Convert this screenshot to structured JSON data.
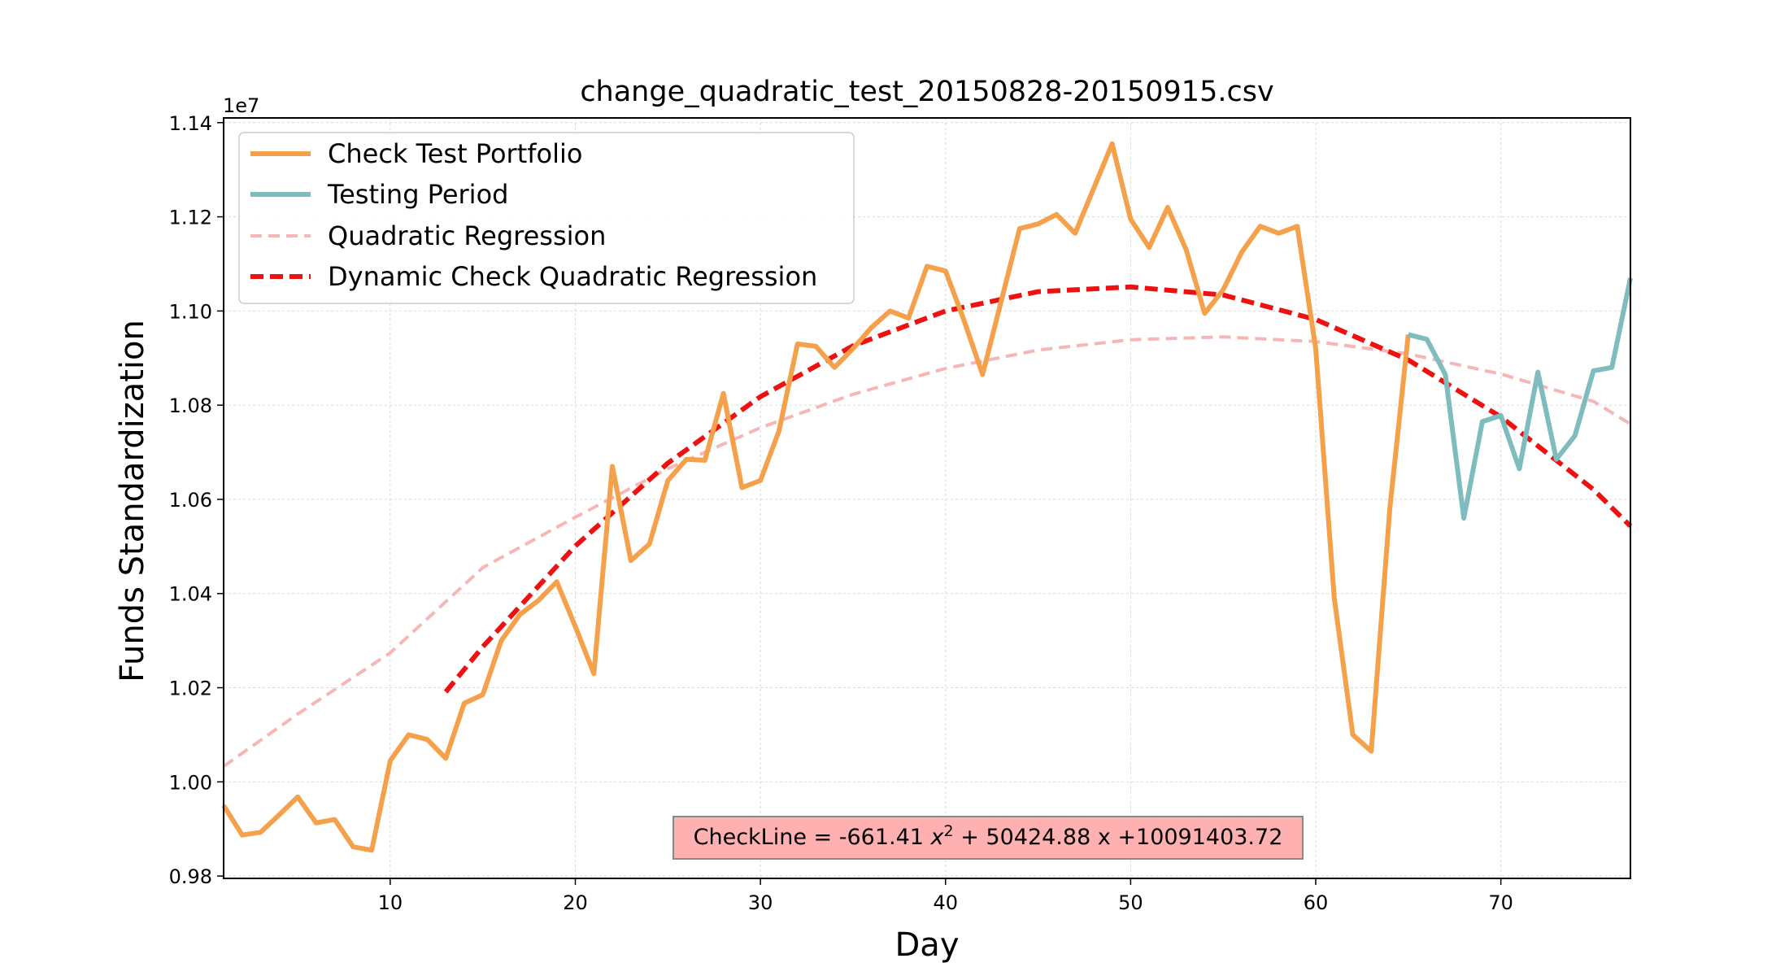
{
  "chart_data": {
    "type": "line",
    "title": "change_quadratic_test_20150828-20150915.csv",
    "xlabel": "Day",
    "ylabel": "Funds Standardization",
    "y_offset_label": "1e7",
    "xlim": [
      1,
      77
    ],
    "ylim": [
      9795000,
      11410000
    ],
    "x_ticks": [
      10,
      20,
      30,
      40,
      50,
      60,
      70
    ],
    "x_tick_labels": [
      "10",
      "20",
      "30",
      "40",
      "50",
      "60",
      "70"
    ],
    "y_ticks": [
      9800000,
      10000000,
      10200000,
      10400000,
      10600000,
      10800000,
      11000000,
      11200000,
      11400000
    ],
    "y_tick_labels": [
      "0.98",
      "1.00",
      "1.02",
      "1.04",
      "1.06",
      "1.08",
      "1.10",
      "1.12",
      "1.14"
    ],
    "grid": true,
    "legend_position": "upper-left",
    "series": [
      {
        "name": "Check Test Portfolio",
        "color": "#f5a04a",
        "style": "solid",
        "x": [
          1,
          2,
          3,
          4,
          5,
          6,
          7,
          8,
          9,
          10,
          11,
          12,
          13,
          14,
          15,
          16,
          17,
          18,
          19,
          20,
          21,
          22,
          23,
          24,
          25,
          26,
          27,
          28,
          29,
          30,
          31,
          32,
          33,
          34,
          35,
          36,
          37,
          38,
          39,
          40,
          41,
          42,
          43,
          44,
          45,
          46,
          47,
          48,
          49,
          50,
          51,
          52,
          53,
          54,
          55,
          56,
          57,
          58,
          59,
          60,
          61,
          62,
          63,
          64,
          65
        ],
        "y": [
          9950000,
          9887000,
          9893000,
          9930000,
          9968000,
          9913000,
          9920000,
          9862000,
          9855000,
          10045000,
          10100000,
          10090000,
          10050000,
          10167000,
          10185000,
          10300000,
          10355000,
          10385000,
          10425000,
          10330000,
          10230000,
          10670000,
          10470000,
          10505000,
          10640000,
          10685000,
          10683000,
          10825000,
          10625000,
          10640000,
          10745000,
          10930000,
          10925000,
          10880000,
          10920000,
          10965000,
          11000000,
          10985000,
          11095000,
          11085000,
          10980000,
          10865000,
          11020000,
          11175000,
          11185000,
          11205000,
          11165000,
          11260000,
          11355000,
          11195000,
          11135000,
          11220000,
          11130000,
          10995000,
          11045000,
          11125000,
          11180000,
          11165000,
          11180000,
          10920000,
          10390000,
          10100000,
          10065000,
          10580000,
          10950000
        ]
      },
      {
        "name": "Testing Period",
        "color": "#7fbcbd",
        "style": "solid",
        "x": [
          65,
          66,
          67,
          68,
          69,
          70,
          71,
          72,
          73,
          74,
          75,
          76,
          77
        ],
        "y": [
          10950000,
          10940000,
          10865000,
          10560000,
          10765000,
          10778000,
          10665000,
          10870000,
          10685000,
          10735000,
          10873000,
          10880000,
          11070000
        ]
      },
      {
        "name": "Quadratic Regression",
        "color": "#f7b6b6",
        "style": "dashed",
        "x": [
          1,
          5,
          10,
          15,
          20,
          25,
          30,
          35,
          40,
          45,
          50,
          55,
          60,
          65,
          70,
          75,
          77
        ],
        "y": [
          10033000,
          10144000,
          10274000,
          10455000,
          10562000,
          10665000,
          10752000,
          10823000,
          10878000,
          10917000,
          10939000,
          10945000,
          10935000,
          10909000,
          10866000,
          10808000,
          10760000
        ]
      },
      {
        "name": "Dynamic Check Quadratic Regression",
        "color": "#ee1111",
        "style": "dashed",
        "x": [
          13,
          15,
          20,
          25,
          30,
          35,
          40,
          45,
          50,
          55,
          60,
          65,
          70,
          75,
          77
        ],
        "y": [
          10191000,
          10287000,
          10501000,
          10677000,
          10818000,
          10926000,
          11000000,
          11041000,
          11051000,
          11034000,
          10982000,
          10896000,
          10775000,
          10621000,
          10543000
        ]
      }
    ],
    "annotation": {
      "text_prefix": "CheckLine = -661.41 ",
      "var_x": "x",
      "sup": "2",
      "text_suffix": " + 50424.88 x +10091403.72",
      "box_color": "#ffb0b0"
    }
  }
}
